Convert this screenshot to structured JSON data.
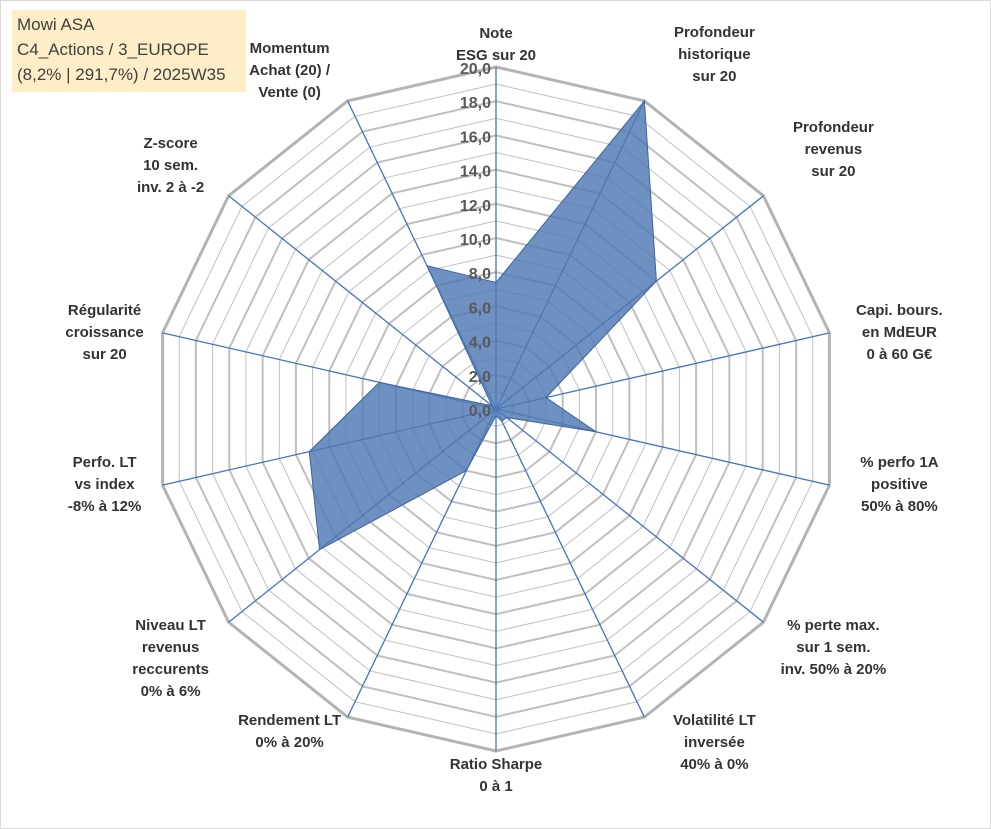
{
  "info_box": {
    "line1": "Mowi ASA",
    "line2": "C4_Actions / 3_EUROPE",
    "line3": "(8,2% | 291,7%) / 2025W35"
  },
  "colors": {
    "grid": "#bfbfbf",
    "outer_ring": "#b3b3b3",
    "spoke": "#4472c4",
    "fill": "#4f79b3",
    "fill_stroke": "#3e64a0"
  },
  "chart_data": {
    "type": "radar",
    "title": "",
    "r_min": 0,
    "r_max": 20,
    "r_step": 1,
    "tick_labels": [
      "0,0",
      "2,0",
      "4,0",
      "6,0",
      "8,0",
      "10,0",
      "12,0",
      "14,0",
      "16,0",
      "18,0",
      "20,0"
    ],
    "axes": [
      [
        "Note",
        "ESG sur 20"
      ],
      [
        "Profondeur",
        "historique",
        "sur 20"
      ],
      [
        "Profondeur",
        "revenus",
        "sur 20"
      ],
      [
        "Capi. bours.",
        "en MdEUR",
        "0 à 60 G€"
      ],
      [
        "% perfo 1A",
        "positive",
        "50% à 80%"
      ],
      [
        "% perte max.",
        "sur 1 sem.",
        "inv. 50% à 20%"
      ],
      [
        "Volatilité LT",
        "inversée",
        "40% à 0%"
      ],
      [
        "Ratio Sharpe",
        "0 à 1"
      ],
      [
        "Rendement LT",
        "0% à 20%"
      ],
      [
        "Niveau LT",
        "revenus",
        "reccurents",
        "0% à 6%"
      ],
      [
        "Perfo. LT",
        "vs index",
        "-8% à 12%"
      ],
      [
        "Régularité",
        "croissance",
        "sur 20"
      ],
      [
        "Z-score",
        "10 sem.",
        "inv. 2 à -2"
      ],
      [
        "Momentum",
        "Achat (20) /",
        "Vente (0)"
      ]
    ],
    "values": [
      7.4,
      20.0,
      12.0,
      3.0,
      6.0,
      0.8,
      0.8,
      0.4,
      4.0,
      13.2,
      11.2,
      7.0,
      0.3,
      9.3
    ]
  }
}
